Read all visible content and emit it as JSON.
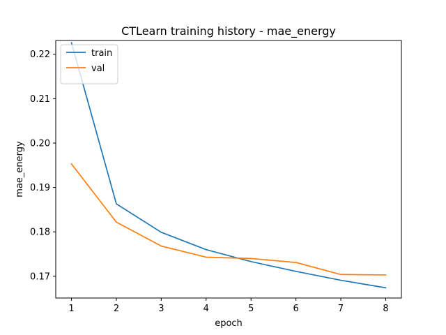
{
  "chart_data": {
    "type": "line",
    "title": "CTLearn training history - mae_energy",
    "xlabel": "epoch",
    "ylabel": "mae_energy",
    "x": [
      1,
      2,
      3,
      4,
      5,
      6,
      7,
      8
    ],
    "xticks": [
      "1",
      "2",
      "3",
      "4",
      "5",
      "6",
      "7",
      "8"
    ],
    "yticks": [
      "0.17",
      "0.18",
      "0.19",
      "0.20",
      "0.21",
      "0.22"
    ],
    "xlim": [
      0.65,
      8.35
    ],
    "ylim": [
      0.1651,
      0.2231
    ],
    "grid": false,
    "legend_position": "top-left",
    "series": [
      {
        "name": "train",
        "color": "#1f77b4",
        "values": [
          0.2226,
          0.1863,
          0.1799,
          0.176,
          0.1733,
          0.1711,
          0.1691,
          0.1674
        ]
      },
      {
        "name": "val",
        "color": "#ff7f0e",
        "values": [
          0.1953,
          0.1822,
          0.1768,
          0.1743,
          0.174,
          0.1731,
          0.1704,
          0.1703
        ]
      }
    ]
  }
}
